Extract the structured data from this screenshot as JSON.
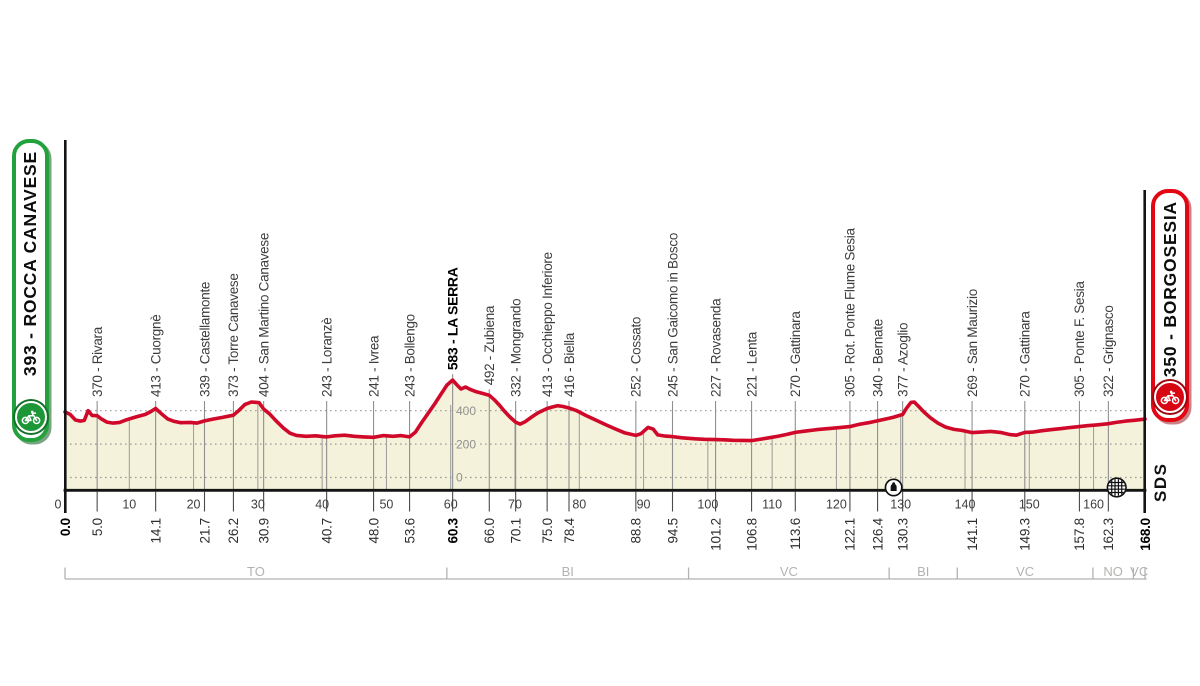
{
  "start": {
    "label": "393 - ROCCA CANAVESE",
    "color": "#23a13c",
    "icon": "cyclist-icon"
  },
  "finish": {
    "label": "350 - BORGOSESIA",
    "color": "#e30613",
    "icon": "cyclist-icon"
  },
  "logo": "SDS",
  "chart_data": {
    "type": "area",
    "xlabel": "km",
    "ylabel": "elevation_m",
    "x_range": [
      0,
      168
    ],
    "x_ticks": [
      0,
      10,
      20,
      30,
      40,
      50,
      60,
      70,
      80,
      90,
      100,
      110,
      120,
      130,
      140,
      150,
      160
    ],
    "y_gridlines": [
      0,
      200,
      400
    ],
    "grid": "dotted-horizontal",
    "places": [
      {
        "km": 5.0,
        "elev": 370,
        "name": "Rivara"
      },
      {
        "km": 14.1,
        "elev": 413,
        "name": "Cuorgnè"
      },
      {
        "km": 21.7,
        "elev": 339,
        "name": "Castellamonte"
      },
      {
        "km": 26.2,
        "elev": 373,
        "name": "Torre Canavese"
      },
      {
        "km": 30.9,
        "elev": 404,
        "name": "San Martino Canavese"
      },
      {
        "km": 40.7,
        "elev": 243,
        "name": "Loranzè"
      },
      {
        "km": 48.0,
        "elev": 241,
        "name": "Ivrea"
      },
      {
        "km": 53.6,
        "elev": 243,
        "name": "Bollengo"
      },
      {
        "km": 60.3,
        "elev": 583,
        "name": "LA SERRA",
        "bold": true
      },
      {
        "km": 66.0,
        "elev": 492,
        "name": "Zubiena"
      },
      {
        "km": 70.1,
        "elev": 332,
        "name": "Mongrando"
      },
      {
        "km": 75.0,
        "elev": 413,
        "name": "Occhieppo Inferiore"
      },
      {
        "km": 78.4,
        "elev": 416,
        "name": "Biella"
      },
      {
        "km": 88.8,
        "elev": 252,
        "name": "Cossato"
      },
      {
        "km": 94.5,
        "elev": 245,
        "name": "San Gaicomo in Bosco"
      },
      {
        "km": 101.2,
        "elev": 227,
        "name": "Rovasenda"
      },
      {
        "km": 106.8,
        "elev": 221,
        "name": "Lenta"
      },
      {
        "km": 113.6,
        "elev": 270,
        "name": "Gattinara"
      },
      {
        "km": 122.1,
        "elev": 305,
        "name": "Rot. Ponte Flume Sesia"
      },
      {
        "km": 126.4,
        "elev": 340,
        "name": "Bernate"
      },
      {
        "km": 130.3,
        "elev": 377,
        "name": "Azoglio"
      },
      {
        "km": 141.1,
        "elev": 269,
        "name": "San Maurizio"
      },
      {
        "km": 149.3,
        "elev": 270,
        "name": "Gattinara"
      },
      {
        "km": 157.8,
        "elev": 305,
        "name": "Ponte F. Sesia"
      },
      {
        "km": 162.3,
        "elev": 322,
        "name": "Grignasco"
      }
    ],
    "distance_labels": [
      {
        "km": "0.0",
        "bold": true
      },
      {
        "km": "5.0"
      },
      {
        "km": "14.1"
      },
      {
        "km": "21.7"
      },
      {
        "km": "26.2"
      },
      {
        "km": "30.9"
      },
      {
        "km": "40.7"
      },
      {
        "km": "48.0"
      },
      {
        "km": "53.6"
      },
      {
        "km": "60.3",
        "bold": true
      },
      {
        "km": "66.0"
      },
      {
        "km": "70.1"
      },
      {
        "km": "75.0"
      },
      {
        "km": "78.4"
      },
      {
        "km": "88.8"
      },
      {
        "km": "94.5"
      },
      {
        "km": "101.2"
      },
      {
        "km": "106.8"
      },
      {
        "km": "113.6"
      },
      {
        "km": "122.1"
      },
      {
        "km": "126.4"
      },
      {
        "km": "130.3"
      },
      {
        "km": "141.1"
      },
      {
        "km": "149.3"
      },
      {
        "km": "157.8"
      },
      {
        "km": "162.3"
      },
      {
        "km": "168.0",
        "bold": true
      }
    ],
    "provinces": [
      {
        "label": "TO",
        "from": 0,
        "to": 59.4
      },
      {
        "label": "BI",
        "from": 59.4,
        "to": 97.0
      },
      {
        "label": "VC",
        "from": 97.0,
        "to": 128.2
      },
      {
        "label": "BI",
        "from": 128.2,
        "to": 138.8
      },
      {
        "label": "VC",
        "from": 138.8,
        "to": 159.9
      },
      {
        "label": "NO",
        "from": 159.9,
        "to": 166.2
      },
      {
        "label": "VC",
        "from": 166.2,
        "to": 168.0
      }
    ],
    "route_icons": [
      {
        "name": "feed-zone-icon",
        "km": 128.9
      },
      {
        "name": "grid-sphere-icon",
        "km": 163.6
      }
    ],
    "profile": [
      [
        0,
        393
      ],
      [
        0.8,
        378
      ],
      [
        1.6,
        345
      ],
      [
        2.4,
        338
      ],
      [
        3.0,
        342
      ],
      [
        3.6,
        400
      ],
      [
        4.2,
        372
      ],
      [
        5,
        370
      ],
      [
        5.6,
        352
      ],
      [
        6.5,
        332
      ],
      [
        7.5,
        326
      ],
      [
        8.5,
        330
      ],
      [
        9.5,
        345
      ],
      [
        11,
        362
      ],
      [
        12.5,
        378
      ],
      [
        13.4,
        396
      ],
      [
        14.1,
        413
      ],
      [
        15,
        382
      ],
      [
        16,
        350
      ],
      [
        17,
        336
      ],
      [
        18,
        328
      ],
      [
        19.5,
        330
      ],
      [
        20.5,
        326
      ],
      [
        21.7,
        339
      ],
      [
        23,
        350
      ],
      [
        24.5,
        360
      ],
      [
        26.2,
        373
      ],
      [
        27,
        400
      ],
      [
        28,
        438
      ],
      [
        29,
        452
      ],
      [
        30.2,
        448
      ],
      [
        30.9,
        410
      ],
      [
        31.8,
        382
      ],
      [
        32.8,
        340
      ],
      [
        34,
        295
      ],
      [
        35,
        265
      ],
      [
        36,
        252
      ],
      [
        37.5,
        247
      ],
      [
        39,
        250
      ],
      [
        40.7,
        243
      ],
      [
        42,
        250
      ],
      [
        43.5,
        253
      ],
      [
        45,
        247
      ],
      [
        46.5,
        243
      ],
      [
        48,
        241
      ],
      [
        49.5,
        251
      ],
      [
        51,
        247
      ],
      [
        52.3,
        251
      ],
      [
        53.6,
        243
      ],
      [
        54.5,
        272
      ],
      [
        55.5,
        330
      ],
      [
        56.5,
        385
      ],
      [
        57.5,
        440
      ],
      [
        58.5,
        500
      ],
      [
        59.4,
        553
      ],
      [
        60.3,
        583
      ],
      [
        61,
        553
      ],
      [
        61.6,
        530
      ],
      [
        62.3,
        542
      ],
      [
        63,
        528
      ],
      [
        64,
        513
      ],
      [
        65,
        503
      ],
      [
        66,
        492
      ],
      [
        66.8,
        465
      ],
      [
        67.6,
        432
      ],
      [
        68.4,
        395
      ],
      [
        69.2,
        362
      ],
      [
        70.1,
        332
      ],
      [
        70.8,
        320
      ],
      [
        71.6,
        335
      ],
      [
        72.6,
        362
      ],
      [
        73.6,
        388
      ],
      [
        75,
        413
      ],
      [
        75.8,
        422
      ],
      [
        76.6,
        430
      ],
      [
        77.4,
        426
      ],
      [
        78.4,
        416
      ],
      [
        79.5,
        402
      ],
      [
        81,
        372
      ],
      [
        82.5,
        345
      ],
      [
        84,
        318
      ],
      [
        85.5,
        293
      ],
      [
        87,
        268
      ],
      [
        88.8,
        252
      ],
      [
        89.6,
        262
      ],
      [
        90.7,
        300
      ],
      [
        91.5,
        290
      ],
      [
        92.2,
        255
      ],
      [
        93.4,
        248
      ],
      [
        94.5,
        245
      ],
      [
        96,
        238
      ],
      [
        98,
        232
      ],
      [
        99.5,
        229
      ],
      [
        101.2,
        227
      ],
      [
        102.5,
        226
      ],
      [
        104,
        223
      ],
      [
        105.5,
        222
      ],
      [
        106.8,
        221
      ],
      [
        108,
        228
      ],
      [
        109.5,
        238
      ],
      [
        111,
        248
      ],
      [
        112.3,
        258
      ],
      [
        113.6,
        270
      ],
      [
        115,
        277
      ],
      [
        117,
        287
      ],
      [
        119,
        294
      ],
      [
        120.5,
        299
      ],
      [
        122.1,
        305
      ],
      [
        123.5,
        318
      ],
      [
        125,
        328
      ],
      [
        126.4,
        340
      ],
      [
        127.5,
        349
      ],
      [
        128.8,
        360
      ],
      [
        130.3,
        377
      ],
      [
        130.9,
        415
      ],
      [
        131.6,
        450
      ],
      [
        132.1,
        452
      ],
      [
        132.8,
        425
      ],
      [
        133.6,
        392
      ],
      [
        134.6,
        358
      ],
      [
        135.8,
        325
      ],
      [
        137,
        302
      ],
      [
        138.3,
        288
      ],
      [
        139.5,
        282
      ],
      [
        141.1,
        269
      ],
      [
        142.5,
        272
      ],
      [
        144,
        276
      ],
      [
        145.5,
        270
      ],
      [
        147,
        257
      ],
      [
        148,
        253
      ],
      [
        149.3,
        270
      ],
      [
        150.5,
        272
      ],
      [
        152,
        280
      ],
      [
        153.5,
        287
      ],
      [
        155,
        293
      ],
      [
        156.5,
        300
      ],
      [
        157.8,
        305
      ],
      [
        159,
        310
      ],
      [
        160.5,
        315
      ],
      [
        162.3,
        322
      ],
      [
        163.5,
        330
      ],
      [
        165,
        338
      ],
      [
        166.5,
        343
      ],
      [
        168,
        350
      ]
    ],
    "colors": {
      "line": "#d0092a",
      "fill": "#f4f2da",
      "grid": "#9b9b9b",
      "waypoint_line": "#8f8f8f",
      "axis": "#141414",
      "province": "#b3b2b0",
      "tick_label": "#3e3e3e",
      "place_label": "#3d3d3d"
    }
  }
}
